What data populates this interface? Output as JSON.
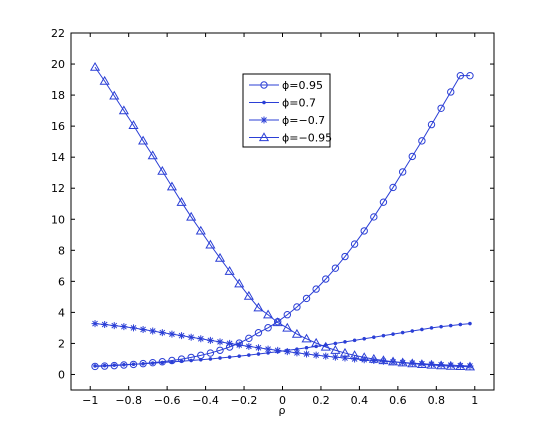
{
  "chart_data": {
    "type": "line",
    "title": "",
    "xlabel": "ρ",
    "ylabel": "",
    "xlim": [
      -1.1,
      1.1
    ],
    "ylim": [
      -1,
      22
    ],
    "x_ticks": [
      -1,
      -0.8,
      -0.6,
      -0.4,
      -0.2,
      0,
      0.2,
      0.4,
      0.6,
      0.8,
      1
    ],
    "x_tick_labels": [
      "−1",
      "−0.8",
      "−0.6",
      "−0.4",
      "−0.2",
      "0",
      "0.2",
      "0.4",
      "0.6",
      "0.8",
      "1"
    ],
    "y_ticks": [
      0,
      2,
      4,
      6,
      8,
      10,
      12,
      14,
      16,
      18,
      20,
      22
    ],
    "y_tick_labels": [
      "0",
      "2",
      "4",
      "6",
      "8",
      "10",
      "12",
      "14",
      "16",
      "18",
      "20",
      "22"
    ],
    "grid": false,
    "legend_position": "top-center",
    "line_color": "#2b3fd6",
    "x": [
      -0.975,
      -0.925,
      -0.875,
      -0.825,
      -0.775,
      -0.725,
      -0.675,
      -0.625,
      -0.575,
      -0.525,
      -0.475,
      -0.425,
      -0.375,
      -0.325,
      -0.275,
      -0.225,
      -0.175,
      -0.125,
      -0.075,
      -0.025,
      0.025,
      0.075,
      0.125,
      0.175,
      0.225,
      0.275,
      0.325,
      0.375,
      0.425,
      0.475,
      0.525,
      0.575,
      0.625,
      0.675,
      0.725,
      0.775,
      0.825,
      0.875,
      0.925,
      0.975
    ],
    "series": [
      {
        "name": "ϕ=0.95",
        "marker": "circle",
        "values": [
          0.52,
          0.54,
          0.57,
          0.61,
          0.65,
          0.7,
          0.76,
          0.82,
          0.9,
          0.99,
          1.1,
          1.23,
          1.38,
          1.56,
          1.77,
          2.02,
          2.33,
          2.69,
          3.01,
          3.4,
          3.85,
          4.35,
          4.9,
          5.5,
          6.15,
          6.85,
          7.6,
          8.4,
          9.25,
          10.15,
          11.1,
          12.05,
          13.05,
          14.05,
          15.05,
          16.1,
          17.15,
          18.2,
          19.25,
          19.25
        ]
      },
      {
        "name": "ϕ=0.7",
        "marker": "dot",
        "values": [
          0.55,
          0.57,
          0.6,
          0.63,
          0.66,
          0.69,
          0.73,
          0.77,
          0.81,
          0.85,
          0.9,
          0.95,
          1.0,
          1.06,
          1.12,
          1.18,
          1.25,
          1.32,
          1.39,
          1.47,
          1.55,
          1.63,
          1.72,
          1.81,
          1.9,
          2.0,
          2.1,
          2.2,
          2.3,
          2.4,
          2.5,
          2.6,
          2.7,
          2.8,
          2.9,
          3.0,
          3.08,
          3.15,
          3.22,
          3.28
        ]
      },
      {
        "name": "ϕ=−0.7",
        "marker": "star",
        "values": [
          3.28,
          3.22,
          3.15,
          3.08,
          3.0,
          2.9,
          2.8,
          2.7,
          2.6,
          2.5,
          2.4,
          2.3,
          2.2,
          2.1,
          2.0,
          1.9,
          1.81,
          1.72,
          1.63,
          1.55,
          1.47,
          1.39,
          1.32,
          1.25,
          1.18,
          1.12,
          1.06,
          1.0,
          0.95,
          0.9,
          0.85,
          0.81,
          0.77,
          0.73,
          0.69,
          0.66,
          0.63,
          0.6,
          0.57,
          0.55
        ]
      },
      {
        "name": "ϕ=−0.95",
        "marker": "triangle",
        "values": [
          19.8,
          18.9,
          17.95,
          17.0,
          16.05,
          15.05,
          14.1,
          13.1,
          12.1,
          11.1,
          10.15,
          9.25,
          8.35,
          7.5,
          6.65,
          5.85,
          5.05,
          4.3,
          3.85,
          3.35,
          3.0,
          2.6,
          2.3,
          2.02,
          1.77,
          1.56,
          1.38,
          1.23,
          1.1,
          0.99,
          0.9,
          0.82,
          0.76,
          0.7,
          0.65,
          0.61,
          0.57,
          0.54,
          0.52,
          0.5
        ]
      }
    ]
  }
}
